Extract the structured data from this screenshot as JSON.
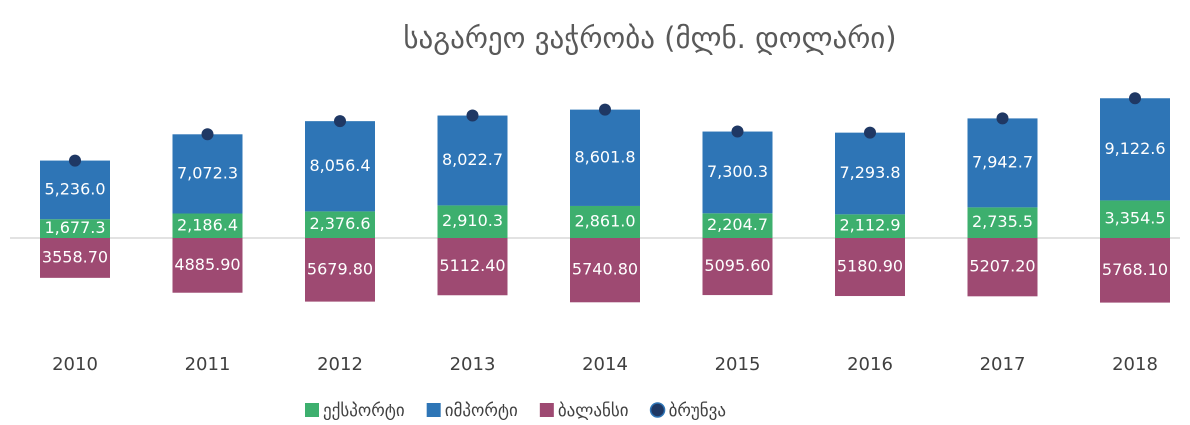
{
  "chart_data": {
    "type": "bar",
    "title": "საგარეო ვაჭრობა (მლნ. დოლარი)",
    "categories": [
      "2010",
      "2011",
      "2012",
      "2013",
      "2014",
      "2015",
      "2016",
      "2017",
      "2018"
    ],
    "series": [
      {
        "name": "ექსპორტი",
        "type": "bar",
        "color": "#3daf6e",
        "values": [
          1677.3,
          2186.4,
          2376.6,
          2910.3,
          2861.0,
          2204.7,
          2112.9,
          2735.5,
          3354.5
        ],
        "value_labels": [
          "1,677.3",
          "2,186.4",
          "2,376.6",
          "2,910.3",
          "2,861.0",
          "2,204.7",
          "2,112.9",
          "2,735.5",
          "3,354.5"
        ]
      },
      {
        "name": "იმპორტი",
        "type": "bar",
        "color": "#2e75b6",
        "values": [
          5236.0,
          7072.3,
          8056.4,
          8022.7,
          8601.8,
          7300.3,
          7293.8,
          7942.7,
          9122.6
        ],
        "value_labels": [
          "5,236.0",
          "7,072.3",
          "8,056.4",
          "8,022.7",
          "8,601.8",
          "7,300.3",
          "7,293.8",
          "7,942.7",
          "9,122.6"
        ]
      },
      {
        "name": "ბალანსი",
        "type": "bar",
        "color": "#9e4a72",
        "values": [
          -3558.7,
          -4885.9,
          -5679.8,
          -5112.4,
          -5740.8,
          -5095.6,
          -5180.9,
          -5207.2,
          -5768.1
        ],
        "value_labels": [
          "3558.70",
          "4885.90",
          "5679.80",
          "5112.40",
          "5740.80",
          "5095.60",
          "5180.90",
          "5207.20",
          "5768.10"
        ]
      },
      {
        "name": "ბრუნვა",
        "type": "scatter",
        "color": "#1f3864",
        "values": [
          6913.3,
          9258.7,
          10433.0,
          10933.0,
          11462.8,
          9505.0,
          9406.7,
          10678.2,
          12477.1
        ]
      }
    ],
    "legend": "bottom"
  }
}
